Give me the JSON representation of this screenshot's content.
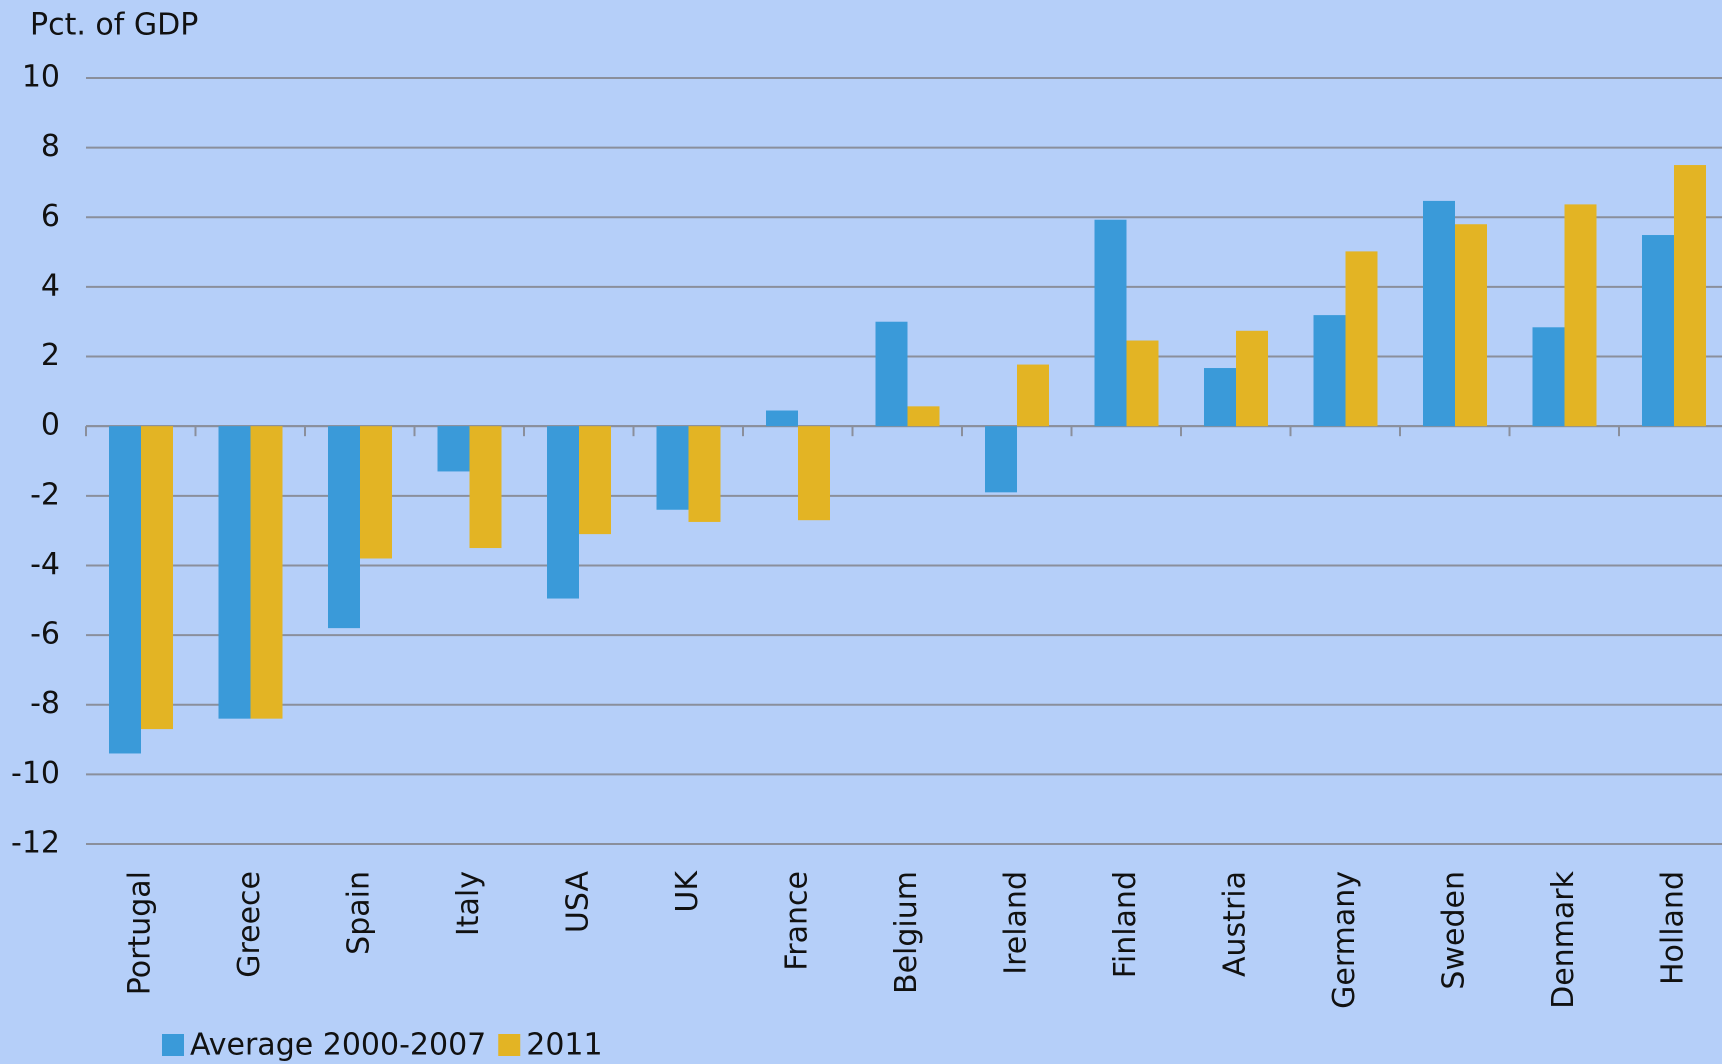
{
  "chart_data": {
    "type": "bar",
    "y_label": "Pct. of GDP",
    "categories": [
      "Portugal",
      "Greece",
      "Spain",
      "Italy",
      "USA",
      "UK",
      "France",
      "Belgium",
      "Ireland",
      "Finland",
      "Austria",
      "Germany",
      "Sweden",
      "Denmark",
      "Holland"
    ],
    "series": [
      {
        "name": "Average 2000-2007",
        "color": "#3a9ad9",
        "values": [
          -9.4,
          -8.4,
          -5.8,
          -1.3,
          -4.95,
          -2.4,
          0.45,
          3.0,
          -1.9,
          5.93,
          1.67,
          3.19,
          6.47,
          2.84,
          5.49
        ]
      },
      {
        "name": "2011",
        "color": "#e3b424",
        "values": [
          -8.7,
          -8.4,
          -3.8,
          -3.5,
          -3.1,
          -2.75,
          -2.7,
          0.57,
          1.77,
          2.46,
          2.74,
          5.02,
          5.8,
          6.37,
          7.5
        ]
      }
    ],
    "ylim": [
      -12,
      10
    ],
    "yticks": [
      -12,
      -10,
      -8,
      -6,
      -4,
      -2,
      0,
      2,
      4,
      6,
      8,
      10
    ],
    "grid": true
  }
}
